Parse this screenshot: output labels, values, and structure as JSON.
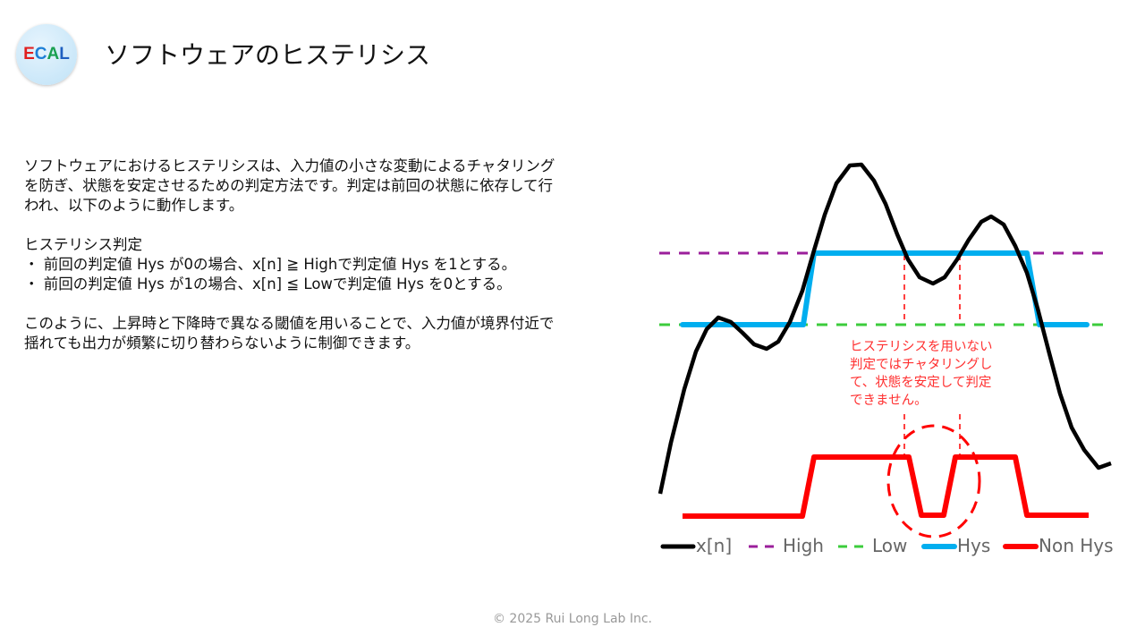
{
  "logo": {
    "letters": [
      "E",
      "C",
      "A",
      "L"
    ],
    "colors": [
      "#e02020",
      "#1e7fd6",
      "#1aa050",
      "#1e5fc0"
    ]
  },
  "header": {
    "title": "ソフトウェアのヒステリシス"
  },
  "body": {
    "intro": [
      "ソフトウェアにおけるヒステリシスは、入力値の小さな変動によるチャタリング",
      "を防ぎ、状態を安定させるための判定方法です。判定は前回の状態に依存して行",
      "われ、以下のように動作します。"
    ],
    "section_title": "ヒステリシス判定",
    "bullets": [
      "・ 前回の判定値 Hys が0の場合、x[n] ≧ Highで判定値 Hys を1とする。",
      "・ 前回の判定値 Hys が1の場合、x[n] ≦ Lowで判定値 Hys を0とする。"
    ],
    "conclusion": [
      "このように、上昇時と下降時で異なる閾値を用いることで、入力値が境界付近で",
      "揺れても出力が頻繁に切り替わらないように制御できます。"
    ]
  },
  "diagram": {
    "annotation": [
      "ヒステリシスを用いない",
      "判定ではチャタリングし",
      "て、状態を安定して判定",
      "できません。"
    ],
    "legend": [
      "x[n]",
      "High",
      "Low",
      "Hys",
      "Non Hys"
    ],
    "colors": {
      "x": "#000000",
      "high": "#9b1f9b",
      "low": "#3ccc3c",
      "hys": "#00aeef",
      "nonhys": "#ff0000"
    }
  },
  "footer": {
    "copyright": "© 2025 Rui Long Lab Inc."
  }
}
